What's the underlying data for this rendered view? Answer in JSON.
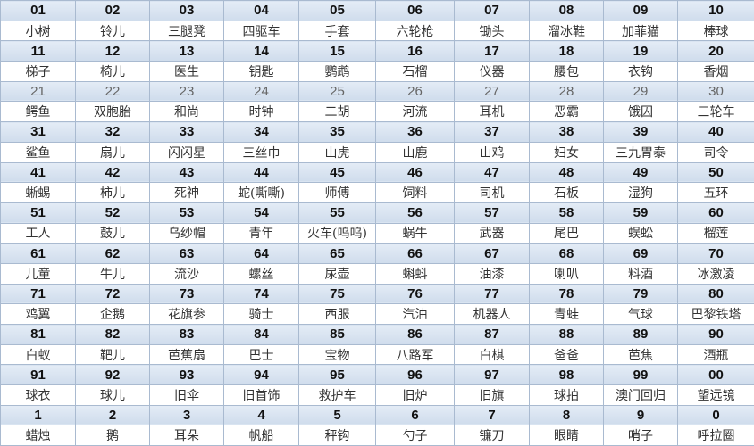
{
  "rows": [
    {
      "numbers": [
        "01",
        "02",
        "03",
        "04",
        "05",
        "06",
        "07",
        "08",
        "09",
        "10"
      ],
      "words": [
        "小树",
        "铃儿",
        "三腿凳",
        "四驱车",
        "手套",
        "六轮枪",
        "锄头",
        "溜冰鞋",
        "加菲猫",
        "棒球"
      ]
    },
    {
      "numbers": [
        "11",
        "12",
        "13",
        "14",
        "15",
        "16",
        "17",
        "18",
        "19",
        "20"
      ],
      "words": [
        "梯子",
        "椅儿",
        "医生",
        "钥匙",
        "鹦鹉",
        "石榴",
        "仪器",
        "腰包",
        "衣钩",
        "香烟"
      ]
    },
    {
      "numbers": [
        "21",
        "22",
        "23",
        "24",
        "25",
        "26",
        "27",
        "28",
        "29",
        "30"
      ],
      "words": [
        "鳄鱼",
        "双胞胎",
        "和尚",
        "时钟",
        "二胡",
        "河流",
        "耳机",
        "恶霸",
        "饿囚",
        "三轮车"
      ],
      "light": true
    },
    {
      "numbers": [
        "31",
        "32",
        "33",
        "34",
        "35",
        "36",
        "37",
        "38",
        "39",
        "40"
      ],
      "words": [
        "鲨鱼",
        "扇儿",
        "闪闪星",
        "三丝巾",
        "山虎",
        "山鹿",
        "山鸡",
        "妇女",
        "三九胃泰",
        "司令"
      ]
    },
    {
      "numbers": [
        "41",
        "42",
        "43",
        "44",
        "45",
        "46",
        "47",
        "48",
        "49",
        "50"
      ],
      "words": [
        "蜥蜴",
        "柿儿",
        "死神",
        "蛇(嘶嘶)",
        "师傅",
        "饲料",
        "司机",
        "石板",
        "湿狗",
        "五环"
      ]
    },
    {
      "numbers": [
        "51",
        "52",
        "53",
        "54",
        "55",
        "56",
        "57",
        "58",
        "59",
        "60"
      ],
      "words": [
        "工人",
        "鼓儿",
        "乌纱帽",
        "青年",
        "火车(呜呜)",
        "蜗牛",
        "武器",
        "尾巴",
        "蜈蚣",
        "榴莲"
      ]
    },
    {
      "numbers": [
        "61",
        "62",
        "63",
        "64",
        "65",
        "66",
        "67",
        "68",
        "69",
        "70"
      ],
      "words": [
        "儿童",
        "牛儿",
        "流沙",
        "螺丝",
        "尿壶",
        "蝌蚪",
        "油漆",
        "喇叭",
        "料酒",
        "冰激凌"
      ]
    },
    {
      "numbers": [
        "71",
        "72",
        "73",
        "74",
        "75",
        "76",
        "77",
        "78",
        "79",
        "80"
      ],
      "words": [
        "鸡翼",
        "企鹅",
        "花旗参",
        "骑士",
        "西服",
        "汽油",
        "机器人",
        "青蛙",
        "气球",
        "巴黎铁塔"
      ]
    },
    {
      "numbers": [
        "81",
        "82",
        "83",
        "84",
        "85",
        "86",
        "87",
        "88",
        "89",
        "90"
      ],
      "words": [
        "白蚁",
        "靶儿",
        "芭蕉扇",
        "巴士",
        "宝物",
        "八路军",
        "白棋",
        "爸爸",
        "芭焦",
        "酒瓶"
      ]
    },
    {
      "numbers": [
        "91",
        "92",
        "93",
        "94",
        "95",
        "96",
        "97",
        "98",
        "99",
        "00"
      ],
      "words": [
        "球衣",
        "球儿",
        "旧伞",
        "旧首饰",
        "救护车",
        "旧炉",
        "旧旗",
        "球拍",
        "澳门回归",
        "望远镜"
      ]
    },
    {
      "numbers": [
        "1",
        "2",
        "3",
        "4",
        "5",
        "6",
        "7",
        "8",
        "9",
        "0"
      ],
      "words": [
        "蜡烛",
        "鹅",
        "耳朵",
        "帆船",
        "秤钩",
        "勺子",
        "镰刀",
        "眼睛",
        "哨子",
        "呼拉圈"
      ]
    }
  ],
  "colors": {
    "number_row_bg": "#d9e4f1",
    "grid": "#a9bad0",
    "word_row_bg": "#ffffff"
  }
}
